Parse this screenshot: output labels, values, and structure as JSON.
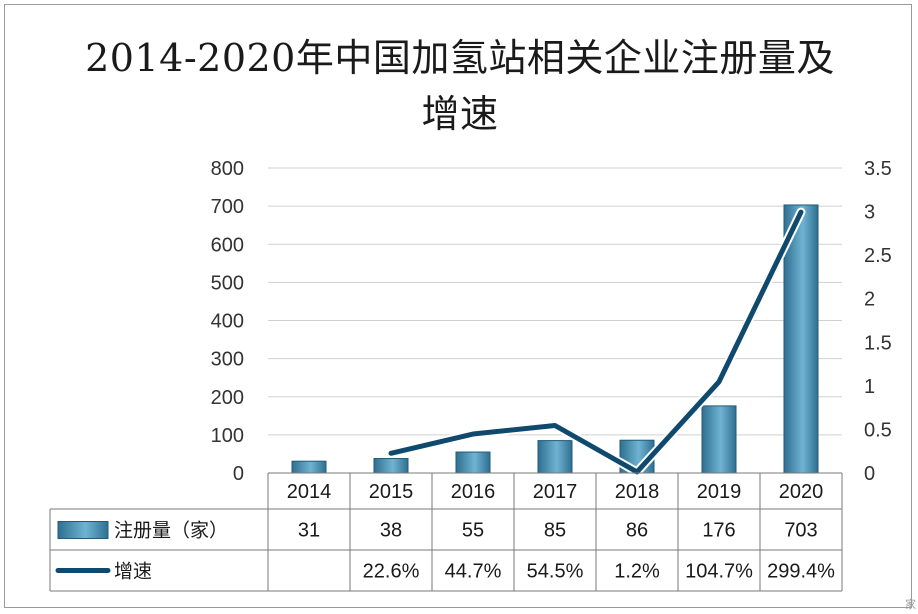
{
  "chart_data": {
    "type": "bar",
    "title": "2014-2020年中国加氢站相关企业注册量及增速",
    "categories": [
      "2014",
      "2015",
      "2016",
      "2017",
      "2018",
      "2019",
      "2020"
    ],
    "series": [
      {
        "name": "注册量（家）",
        "type": "bar",
        "axis": "left",
        "values": [
          31,
          38,
          55,
          85,
          86,
          176,
          703
        ]
      },
      {
        "name": "增速",
        "type": "line",
        "axis": "right",
        "values": [
          null,
          0.226,
          0.447,
          0.545,
          0.012,
          1.047,
          2.994
        ]
      }
    ],
    "y_left": {
      "min": 0,
      "max": 800,
      "ticks": [
        "0",
        "100",
        "200",
        "300",
        "400",
        "500",
        "600",
        "700",
        "800"
      ]
    },
    "y_right": {
      "min": 0,
      "max": 3.5,
      "ticks": [
        "0",
        "0.5",
        "1",
        "1.5",
        "2",
        "2.5",
        "3",
        "3.5"
      ]
    },
    "grid": true,
    "legend": "data-table-bottom",
    "table": {
      "rows": [
        {
          "label": "注册量（家）",
          "cells": [
            "31",
            "38",
            "55",
            "85",
            "86",
            "176",
            "703"
          ]
        },
        {
          "label": "增速",
          "cells": [
            "",
            "22.6%",
            "44.7%",
            "54.5%",
            "1.2%",
            "104.7%",
            "299.4%"
          ]
        }
      ]
    },
    "colors": {
      "bar_dark": "#2f6f91",
      "bar_light": "#6fb3d2",
      "line": "#0f4a6e",
      "grid": "#d0d0d0"
    }
  },
  "watermark": "家"
}
